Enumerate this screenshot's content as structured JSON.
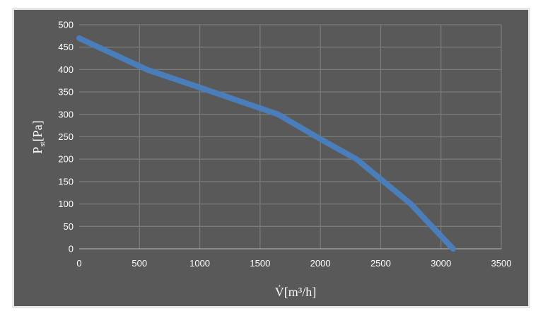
{
  "chart_data": {
    "type": "line",
    "title": "",
    "xlabel": "V̇[m³/h]",
    "ylabel_main": "P",
    "ylabel_sub": "st",
    "ylabel_tail": "[Pa]",
    "xlim": [
      0,
      3500
    ],
    "ylim": [
      0,
      500
    ],
    "xticks": [
      0,
      500,
      1000,
      1500,
      2000,
      2500,
      3000,
      3500
    ],
    "yticks": [
      0,
      50,
      100,
      150,
      200,
      250,
      300,
      350,
      400,
      450,
      500
    ],
    "grid": true,
    "legend": "none",
    "series": [
      {
        "x": [
          0,
          560,
          1000,
          1650,
          2000,
          2300,
          2750,
          3100
        ],
        "y": [
          470,
          400,
          360,
          300,
          245,
          200,
          100,
          0
        ],
        "color": "#4a7ebb"
      }
    ],
    "colors": {
      "background": "#595959",
      "frame": "#e6e6e6",
      "grid": "#7a7a7a",
      "axis": "#a6a6a6",
      "text": "#ffffff"
    }
  }
}
